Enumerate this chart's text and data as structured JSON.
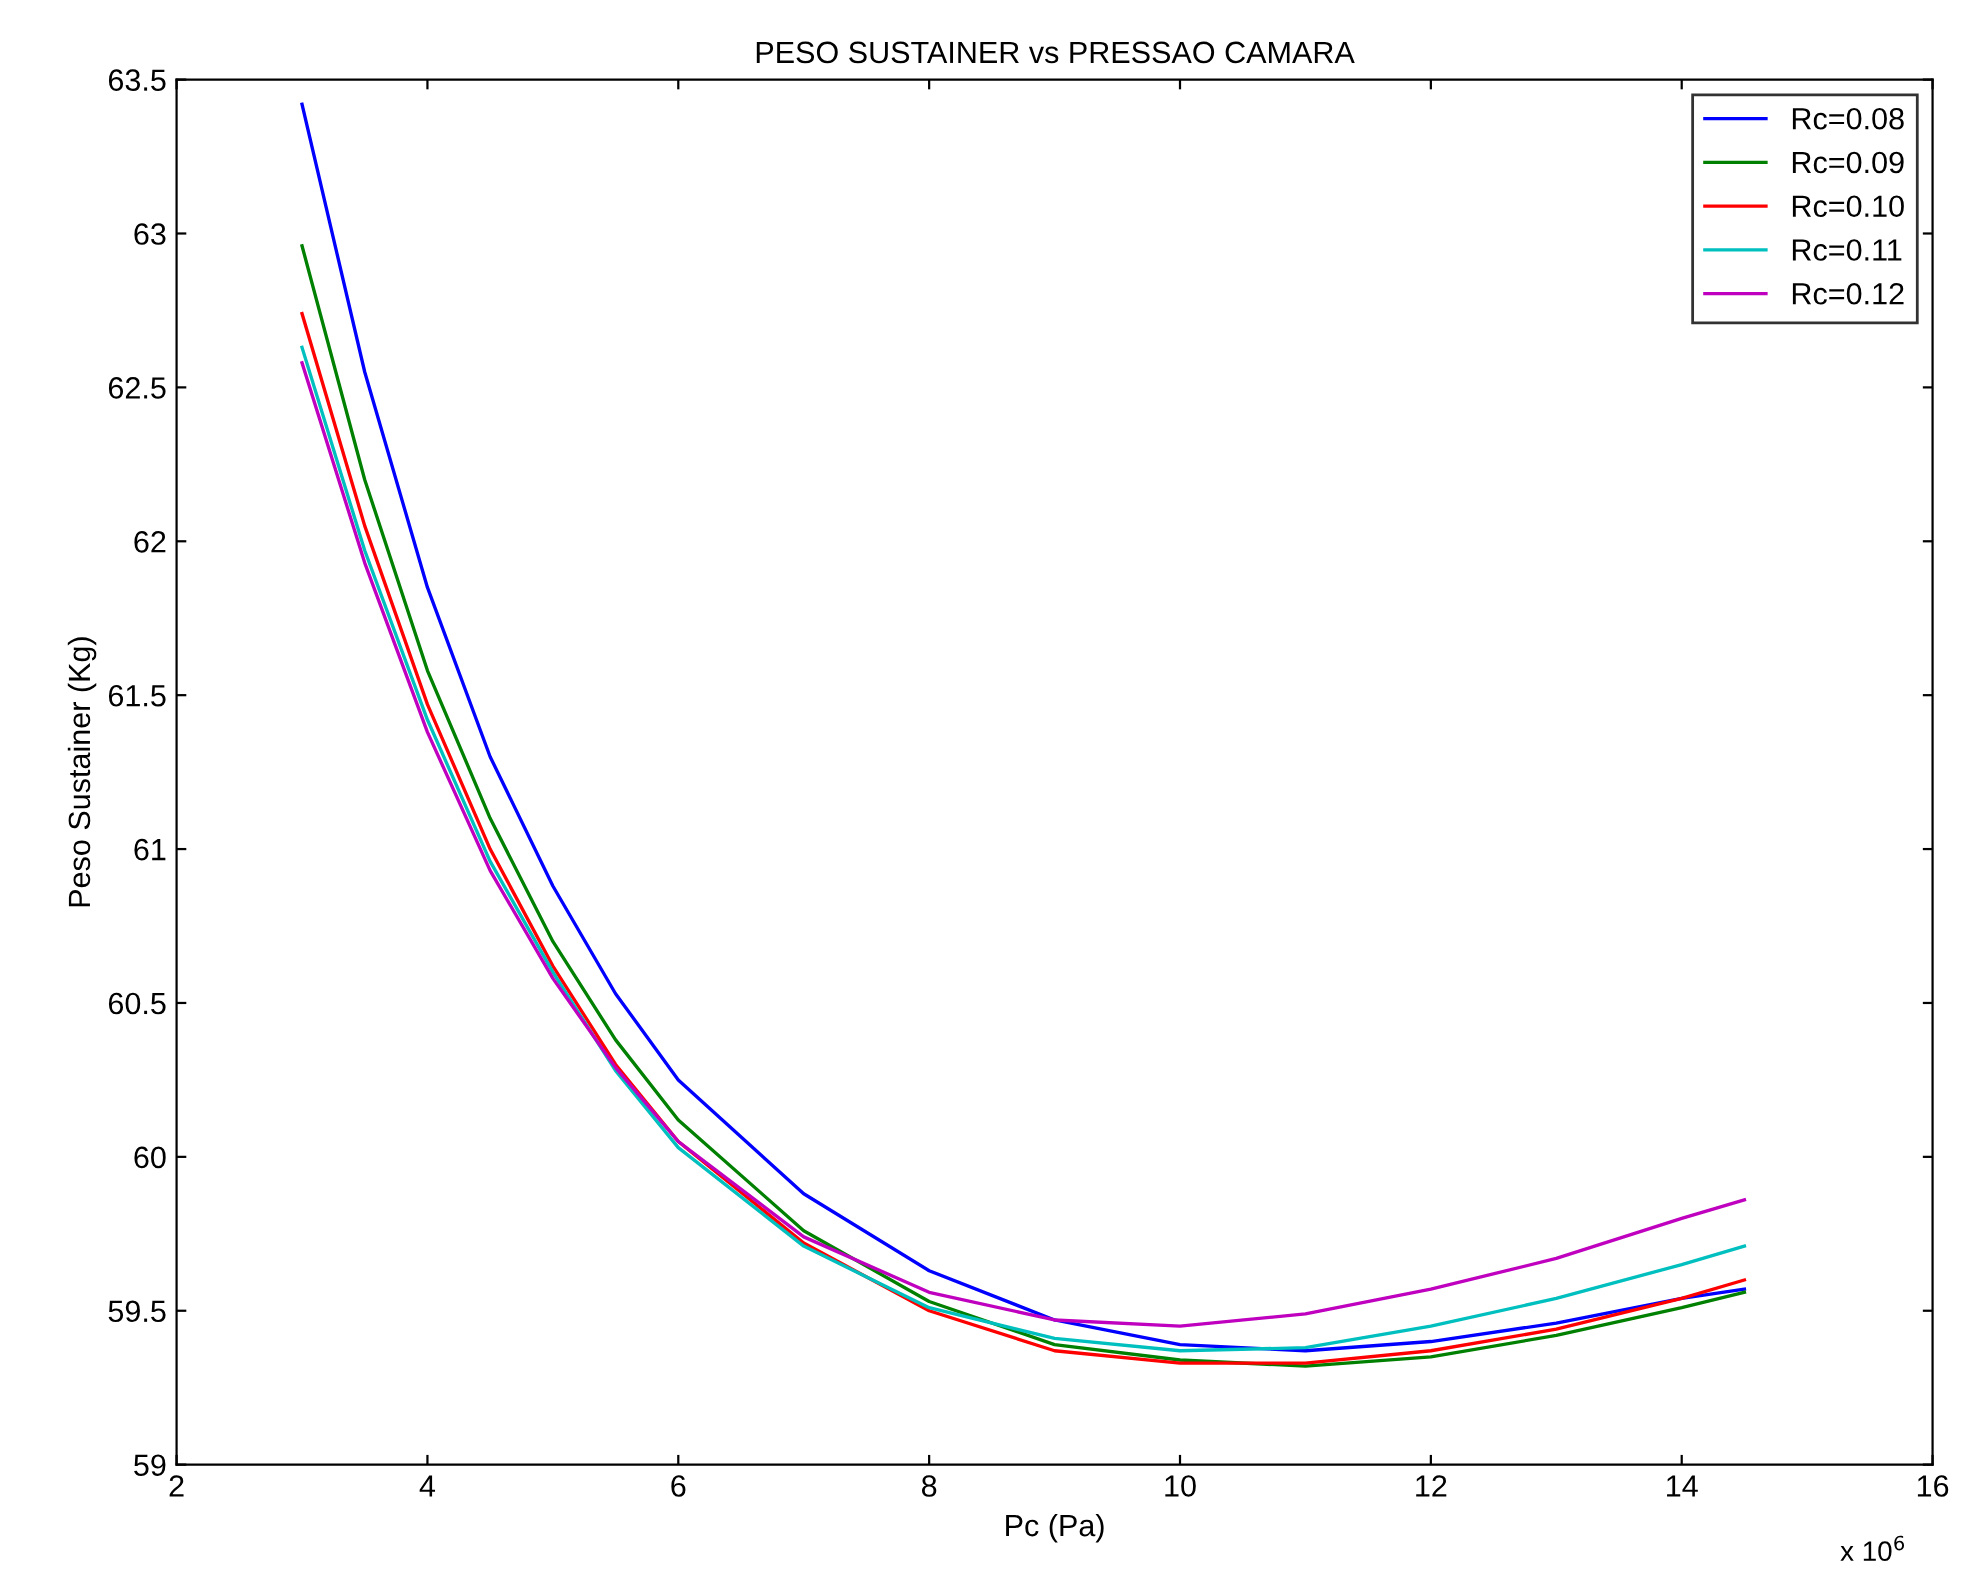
{
  "chart_data": {
    "type": "line",
    "title": "PESO SUSTAINER vs PRESSAO CAMARA",
    "xlabel": "Pc (Pa)",
    "ylabel": "Peso Sustainer (Kg)",
    "annotations": [
      "x 10$^{6}$"
    ],
    "x": [
      3,
      3.5,
      4,
      4.5,
      5,
      5.5,
      6,
      7,
      8,
      9,
      10,
      11,
      12,
      13,
      14,
      14.5
    ],
    "series": [
      {
        "name": "Rc=0.08",
        "color": "#0000ff",
        "values": [
          63.42,
          62.55,
          61.85,
          61.3,
          60.88,
          60.53,
          60.25,
          59.88,
          59.63,
          59.47,
          59.39,
          59.37,
          59.4,
          59.46,
          59.54,
          59.57
        ]
      },
      {
        "name": "Rc=0.09",
        "color": "#008000",
        "values": [
          62.96,
          62.2,
          61.58,
          61.1,
          60.7,
          60.38,
          60.12,
          59.76,
          59.53,
          59.39,
          59.34,
          59.32,
          59.35,
          59.42,
          59.51,
          59.56
        ]
      },
      {
        "name": "Rc=0.10",
        "color": "#ff0000",
        "values": [
          62.74,
          62.05,
          61.47,
          61.0,
          60.62,
          60.3,
          60.05,
          59.72,
          59.5,
          59.37,
          59.33,
          59.33,
          59.37,
          59.44,
          59.54,
          59.6
        ]
      },
      {
        "name": "Rc=0.11",
        "color": "#00bfbf",
        "values": [
          62.63,
          61.97,
          61.42,
          60.96,
          60.6,
          60.28,
          60.03,
          59.71,
          59.51,
          59.41,
          59.37,
          59.38,
          59.45,
          59.54,
          59.65,
          59.71
        ]
      },
      {
        "name": "Rc=0.12",
        "color": "#bf00bf",
        "values": [
          62.58,
          61.93,
          61.38,
          60.93,
          60.58,
          60.29,
          60.05,
          59.74,
          59.56,
          59.47,
          59.45,
          59.49,
          59.57,
          59.67,
          59.8,
          59.86
        ]
      }
    ],
    "xlim": [
      2,
      16
    ],
    "xticks": [
      2,
      4,
      6,
      8,
      10,
      12,
      14,
      16
    ],
    "ylim": [
      59,
      63.5
    ],
    "yticks": [
      59,
      59.5,
      60,
      60.5,
      61,
      61.5,
      62,
      62.5,
      63,
      63.5
    ],
    "grid": false,
    "legend": "top right",
    "marker": "none",
    "line_style": "solid"
  }
}
